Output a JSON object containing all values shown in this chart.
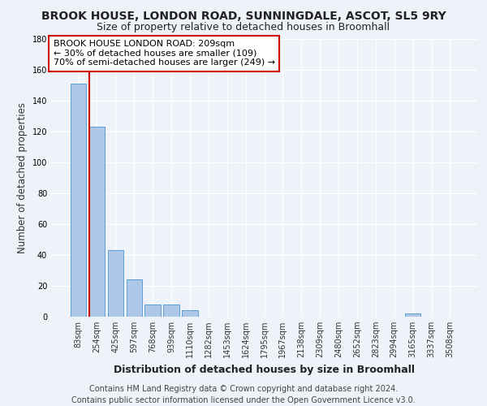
{
  "title": "BROOK HOUSE, LONDON ROAD, SUNNINGDALE, ASCOT, SL5 9RY",
  "subtitle": "Size of property relative to detached houses in Broomhall",
  "xlabel": "Distribution of detached houses by size in Broomhall",
  "ylabel": "Number of detached properties",
  "bar_values": [
    151,
    123,
    43,
    24,
    8,
    8,
    4,
    0,
    0,
    0,
    0,
    0,
    0,
    0,
    0,
    0,
    0,
    0,
    2,
    0,
    0
  ],
  "categories": [
    "83sqm",
    "254sqm",
    "425sqm",
    "597sqm",
    "768sqm",
    "939sqm",
    "1110sqm",
    "1282sqm",
    "1453sqm",
    "1624sqm",
    "1795sqm",
    "1967sqm",
    "2138sqm",
    "2309sqm",
    "2480sqm",
    "2652sqm",
    "2823sqm",
    "2994sqm",
    "3165sqm",
    "3337sqm",
    "3508sqm"
  ],
  "bar_color": "#aec6e8",
  "bar_edge_color": "#5a9fd4",
  "property_line_color": "#cc0000",
  "annotation_text_line1": "BROOK HOUSE LONDON ROAD: 209sqm",
  "annotation_text_line2": "← 30% of detached houses are smaller (109)",
  "annotation_text_line3": "70% of semi-detached houses are larger (249) →",
  "annotation_box_color": "#ffffff",
  "annotation_box_edge_color": "#cc0000",
  "ylim": [
    0,
    180
  ],
  "yticks": [
    0,
    20,
    40,
    60,
    80,
    100,
    120,
    140,
    160,
    180
  ],
  "footer_text": "Contains HM Land Registry data © Crown copyright and database right 2024.\nContains public sector information licensed under the Open Government Licence v3.0.",
  "background_color": "#eef2f9",
  "grid_color": "#ffffff",
  "title_fontsize": 10,
  "subtitle_fontsize": 9,
  "ylabel_fontsize": 8.5,
  "xlabel_fontsize": 9,
  "tick_fontsize": 7,
  "annotation_fontsize": 8,
  "footer_fontsize": 7
}
